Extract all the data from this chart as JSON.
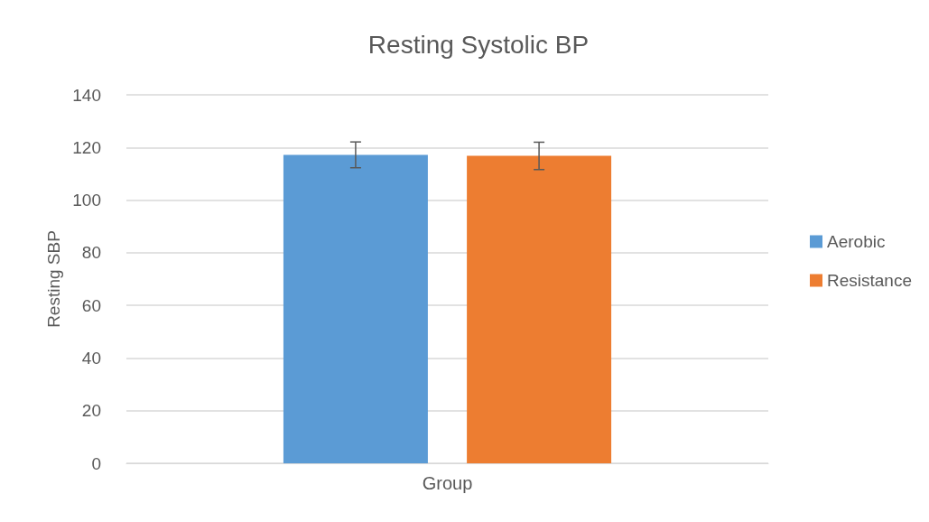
{
  "chart_data": {
    "type": "bar",
    "title": "Resting Systolic BP",
    "ylabel": "Resting SBP",
    "categories": [
      "Group"
    ],
    "series": [
      {
        "name": "Aerobic",
        "color": "#5b9bd5",
        "values": [
          117.2
        ],
        "errors": [
          4.9
        ]
      },
      {
        "name": "Resistance",
        "color": "#ed7d31",
        "values": [
          116.8
        ],
        "errors": [
          5.2
        ]
      }
    ],
    "ylim": [
      0,
      140
    ],
    "yticks": [
      0,
      20,
      40,
      60,
      80,
      100,
      120,
      140
    ],
    "grid": "y",
    "legend": "right"
  }
}
